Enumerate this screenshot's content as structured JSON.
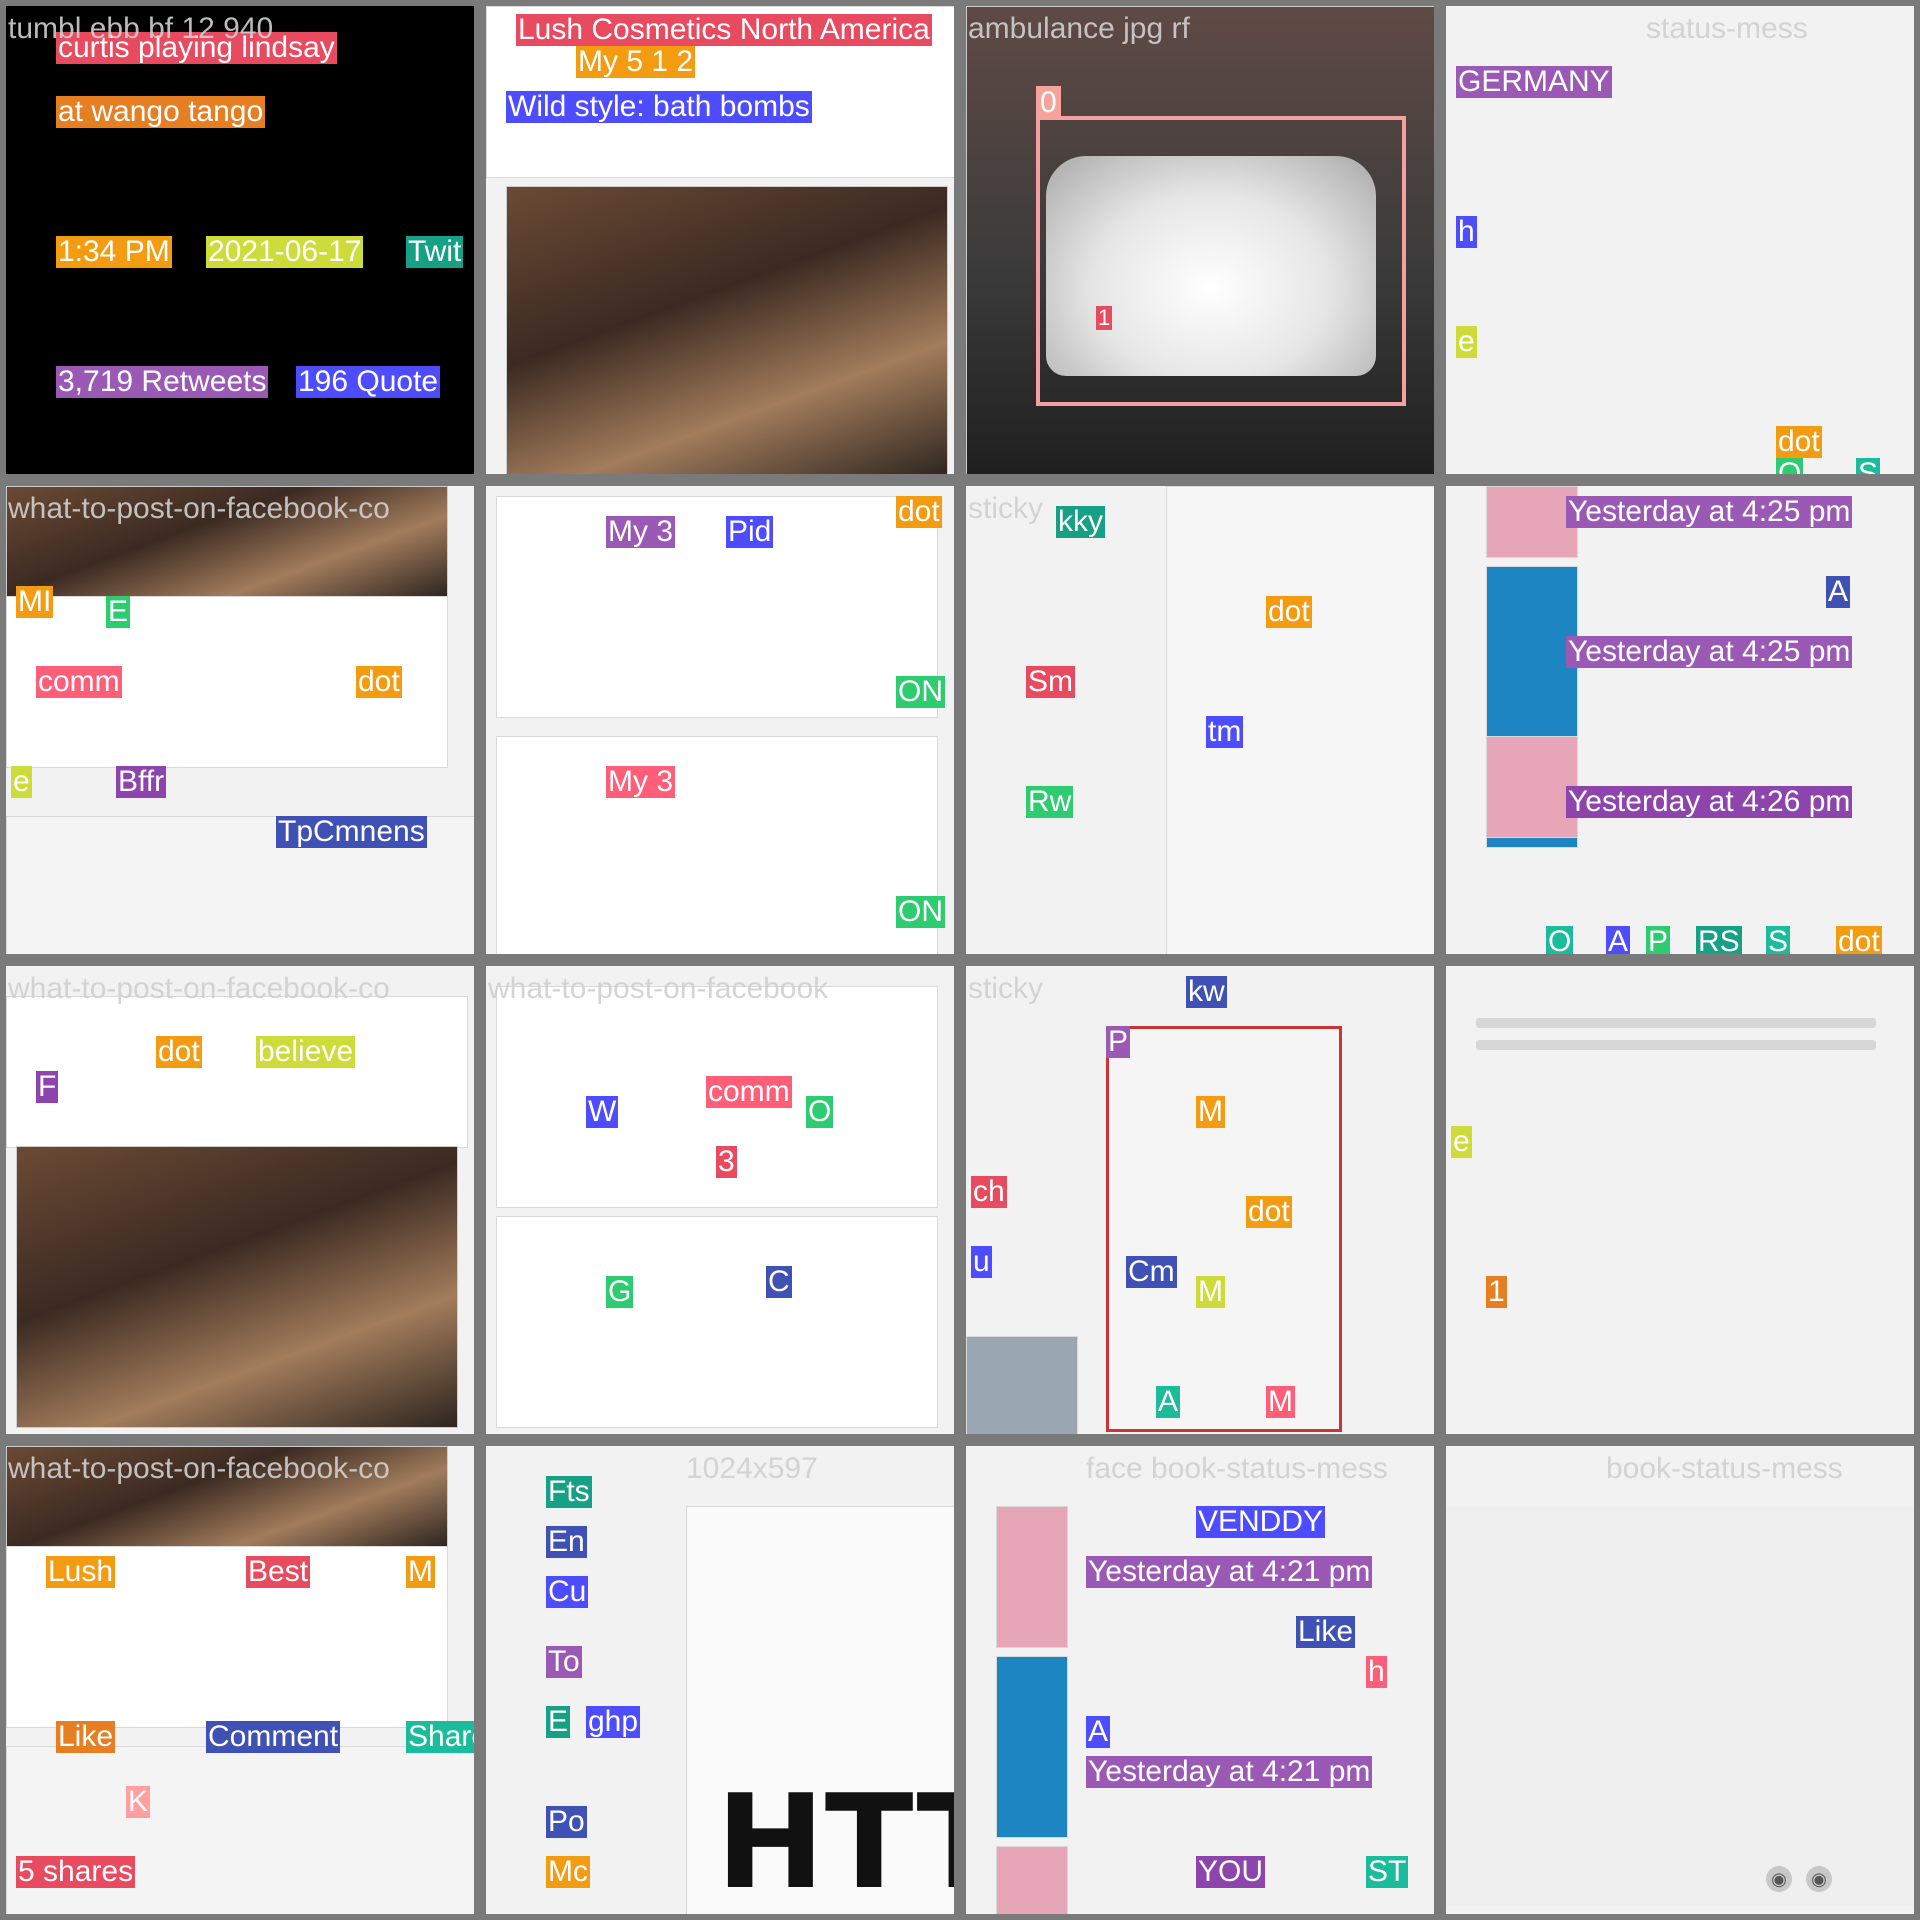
{
  "tiles": [
    {
      "id": "t1",
      "title": "tumbl ebb bf 12 940",
      "labels": [
        "curtis playing lindsay",
        "at wango tango",
        "1:34 PM",
        "2021-06-17",
        "Twit",
        "3,719 Retweets",
        "196 Quote"
      ]
    },
    {
      "id": "t2",
      "title": "",
      "labels": [
        "Lush Cosmetics North America",
        "My 5 1 2",
        "Wild style: bath bombs"
      ]
    },
    {
      "id": "t3",
      "title": "ambulance jpg rf",
      "labels": [
        "0",
        "1"
      ],
      "box_tag": "0"
    },
    {
      "id": "t4",
      "title": "status-mess",
      "labels": [
        "GERMANY",
        "h",
        "e",
        "dot",
        "O",
        "S"
      ]
    },
    {
      "id": "t5",
      "title": "what-to-post-on-facebook-co",
      "labels": [
        "MI",
        "E",
        "comm",
        "dot",
        "e",
        "Bffr",
        "TpCmnens"
      ]
    },
    {
      "id": "t6",
      "title": "",
      "labels": [
        "dot",
        "My 3",
        "Pid",
        "ON",
        "My 3",
        "ON"
      ]
    },
    {
      "id": "t7",
      "title": "sticky",
      "labels": [
        "kky",
        "dot",
        "Sm",
        "Rw",
        "tm"
      ]
    },
    {
      "id": "t8",
      "title": "",
      "labels": [
        "Yesterday at 4:25 pm",
        "A",
        "Yesterday at 4:25 pm",
        "Yesterday at 4:26 pm",
        "dot",
        "O",
        "A",
        "P",
        "RS",
        "S",
        "dot"
      ]
    },
    {
      "id": "t9",
      "title": "what-to-post-on-facebook-co",
      "labels": [
        "dot",
        "believe",
        "F"
      ]
    },
    {
      "id": "t10",
      "title": "what-to-post-on-facebook",
      "labels": [
        "comm",
        "O",
        "W",
        "3",
        "G",
        "C"
      ]
    },
    {
      "id": "t11",
      "title": "sticky",
      "labels": [
        "kw",
        "P",
        "M",
        "dot",
        "Cm",
        "M",
        "A",
        "M",
        "ch",
        "u"
      ]
    },
    {
      "id": "t12",
      "title": "",
      "labels": [
        "e",
        "1"
      ]
    },
    {
      "id": "t13",
      "title": "what-to-post-on-facebook-co",
      "labels": [
        "Lush",
        "Best",
        "M",
        "Like",
        "Comment",
        "Share",
        "5 shares",
        "K"
      ]
    },
    {
      "id": "t14",
      "title": "1024x597",
      "labels": [
        "Fts",
        "En",
        "Cu",
        "To",
        "E",
        "ghp",
        "Po",
        "Mc",
        "HTTP"
      ]
    },
    {
      "id": "t15",
      "title": "face book-status-mess",
      "labels": [
        "VENDDY",
        "Yesterday at 4:21 pm",
        "Like",
        "h",
        "A",
        "Yesterday at 4:21 pm",
        "YOU",
        "ST"
      ]
    },
    {
      "id": "t16",
      "title": "book-status-mess",
      "labels": []
    }
  ],
  "palette": [
    "#e84a5f",
    "#4d4dff",
    "#9b59b6",
    "#2ecc71",
    "#f39c12",
    "#16a085",
    "#e67e22",
    "#3f51b5",
    "#cddc39",
    "#ff5e78",
    "#8e44ad",
    "#1abc9c"
  ]
}
